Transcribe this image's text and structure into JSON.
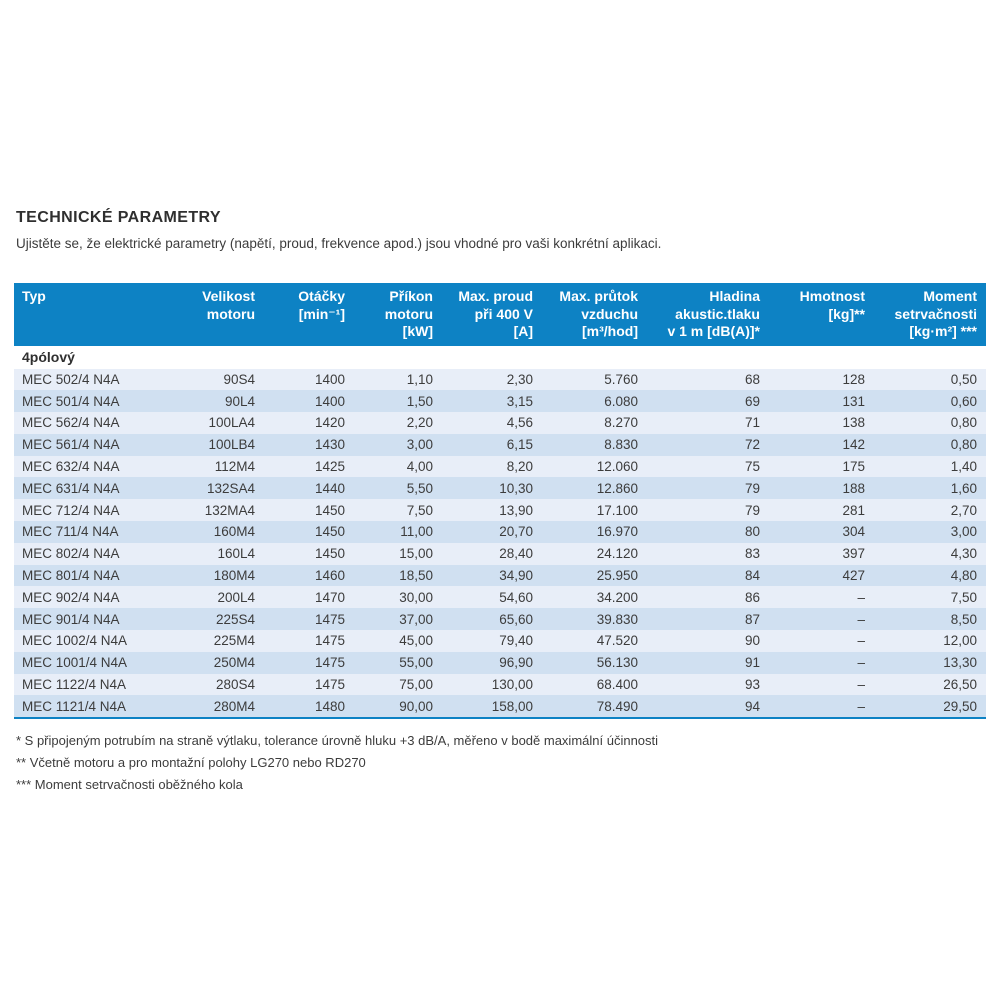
{
  "page": {
    "title": "TECHNICKÉ PARAMETRY",
    "subtitle": "Ujistěte se, že elektrické parametry (napětí, proud, frekvence apod.) jsou vhodné pro vaši konkrétní aplikaci."
  },
  "colors": {
    "accent_blue": "#0d82c4",
    "row_light": "#e8eef8",
    "row_dark": "#d0e0f1"
  },
  "table": {
    "section_label": "4pólový",
    "headers": [
      "Typ",
      "Velikost\nmotoru",
      "Otáčky\n[min⁻¹]",
      "Příkon\nmotoru\n[kW]",
      "Max. proud\npři 400 V\n[A]",
      "Max. průtok\nvzduchu\n[m³/hod]",
      "Hladina\nakustic.tlaku\nv 1 m [dB(A)]*",
      "Hmotnost\n[kg]**",
      "Moment\nsetrvačnosti\n[kg·m²] ***"
    ],
    "rows": [
      [
        "MEC 502/4 N4A",
        "90S4",
        "1400",
        "1,10",
        "2,30",
        "5.760",
        "68",
        "128",
        "0,50"
      ],
      [
        "MEC 501/4 N4A",
        "90L4",
        "1400",
        "1,50",
        "3,15",
        "6.080",
        "69",
        "131",
        "0,60"
      ],
      [
        "MEC 562/4 N4A",
        "100LA4",
        "1420",
        "2,20",
        "4,56",
        "8.270",
        "71",
        "138",
        "0,80"
      ],
      [
        "MEC 561/4 N4A",
        "100LB4",
        "1430",
        "3,00",
        "6,15",
        "8.830",
        "72",
        "142",
        "0,80"
      ],
      [
        "MEC 632/4 N4A",
        "112M4",
        "1425",
        "4,00",
        "8,20",
        "12.060",
        "75",
        "175",
        "1,40"
      ],
      [
        "MEC 631/4 N4A",
        "132SA4",
        "1440",
        "5,50",
        "10,30",
        "12.860",
        "79",
        "188",
        "1,60"
      ],
      [
        "MEC 712/4 N4A",
        "132MA4",
        "1450",
        "7,50",
        "13,90",
        "17.100",
        "79",
        "281",
        "2,70"
      ],
      [
        "MEC 711/4 N4A",
        "160M4",
        "1450",
        "11,00",
        "20,70",
        "16.970",
        "80",
        "304",
        "3,00"
      ],
      [
        "MEC 802/4 N4A",
        "160L4",
        "1450",
        "15,00",
        "28,40",
        "24.120",
        "83",
        "397",
        "4,30"
      ],
      [
        "MEC 801/4 N4A",
        "180M4",
        "1460",
        "18,50",
        "34,90",
        "25.950",
        "84",
        "427",
        "4,80"
      ],
      [
        "MEC 902/4 N4A",
        "200L4",
        "1470",
        "30,00",
        "54,60",
        "34.200",
        "86",
        "–",
        "7,50"
      ],
      [
        "MEC 901/4 N4A",
        "225S4",
        "1475",
        "37,00",
        "65,60",
        "39.830",
        "87",
        "–",
        "8,50"
      ],
      [
        "MEC 1002/4 N4A",
        "225M4",
        "1475",
        "45,00",
        "79,40",
        "47.520",
        "90",
        "–",
        "12,00"
      ],
      [
        "MEC 1001/4 N4A",
        "250M4",
        "1475",
        "55,00",
        "96,90",
        "56.130",
        "91",
        "–",
        "13,30"
      ],
      [
        "MEC 1122/4 N4A",
        "280S4",
        "1475",
        "75,00",
        "130,00",
        "68.400",
        "93",
        "–",
        "26,50"
      ],
      [
        "MEC 1121/4 N4A",
        "280M4",
        "1480",
        "90,00",
        "158,00",
        "78.490",
        "94",
        "–",
        "29,50"
      ]
    ]
  },
  "footnotes": [
    "* S připojeným potrubím na straně výtlaku, tolerance úrovně hluku +3 dB/A, měřeno v bodě maximální účinnosti",
    "** Včetně motoru a pro montažní polohy LG270 nebo RD270",
    "*** Moment setrvačnosti oběžného kola"
  ]
}
